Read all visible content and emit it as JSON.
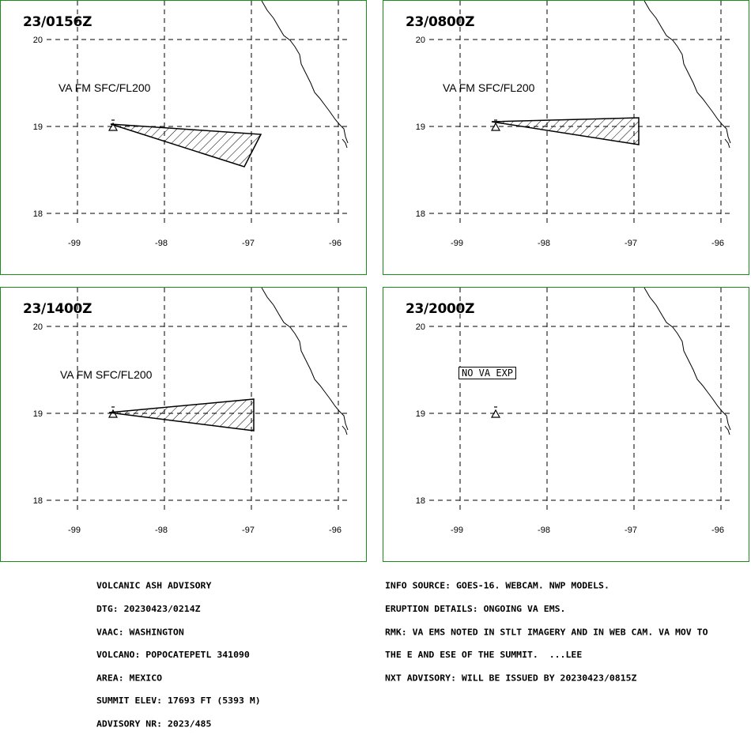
{
  "panels": [
    {
      "time": "23/0156Z",
      "level": "VA FM SFC/FL200",
      "no_va": ""
    },
    {
      "time": "23/0800Z",
      "level": "VA FM SFC/FL200",
      "no_va": ""
    },
    {
      "time": "23/1400Z",
      "level": "VA FM SFC/FL200",
      "no_va": ""
    },
    {
      "time": "23/2000Z",
      "level": "",
      "no_va": "NO VA EXP"
    }
  ],
  "axes": {
    "lat_labels": [
      "20",
      "19",
      "18"
    ],
    "lon_labels": [
      "-99",
      "-98",
      "-97",
      "-96"
    ]
  },
  "advisory_left": [
    "VOLCANIC ASH ADVISORY",
    "DTG: 20230423/0214Z",
    "VAAC: WASHINGTON",
    "VOLCANO: POPOCATEPETL 341090",
    "AREA: MEXICO",
    "SUMMIT ELEV: 17693 FT (5393 M)",
    "ADVISORY NR: 2023/485"
  ],
  "advisory_right": [
    "INFO SOURCE: GOES-16. WEBCAM. NWP MODELS.",
    "ERUPTION DETAILS: ONGOING VA EMS.",
    "RMK: VA EMS NOTED IN STLT IMAGERY AND IN WEB CAM. VA MOV TO",
    "THE E AND ESE OF THE SUMMIT.  ...LEE",
    "NXT ADVISORY: WILL BE ISSUED BY 20230423/0815Z"
  ],
  "colors": {
    "frame": "#1a8c1a",
    "ink": "#000000"
  }
}
